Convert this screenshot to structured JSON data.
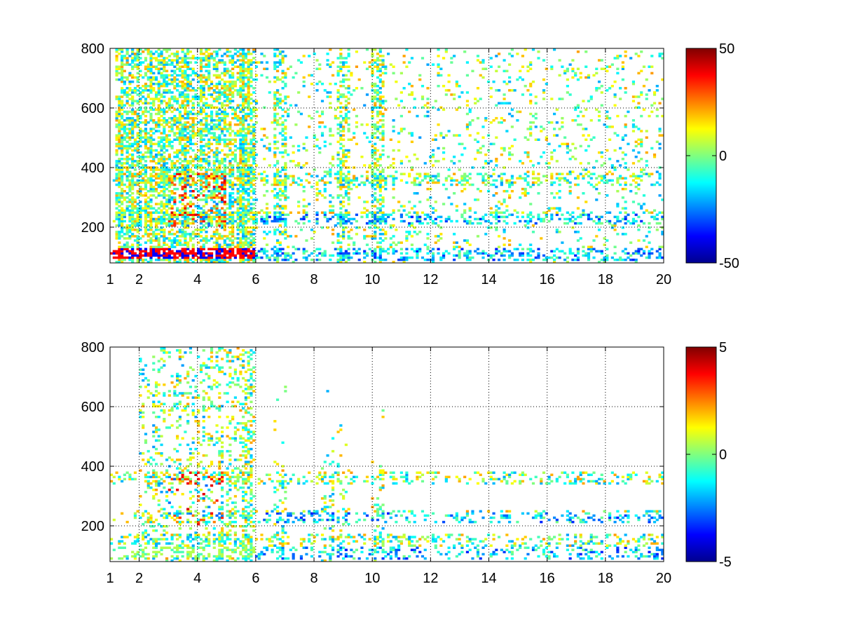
{
  "chart_data": [
    {
      "type": "heatmap",
      "title": "",
      "xlabel": "",
      "ylabel": "",
      "xlim": [
        1,
        20
      ],
      "ylim": [
        80,
        800
      ],
      "xticks": [
        "1",
        "2",
        "4",
        "6",
        "8",
        "10",
        "12",
        "14",
        "16",
        "18",
        "20"
      ],
      "xtick_values": [
        1,
        2,
        4,
        6,
        8,
        10,
        12,
        14,
        16,
        18,
        20
      ],
      "yticks": [
        "200",
        "400",
        "600",
        "800"
      ],
      "ytick_values": [
        200,
        400,
        600,
        800
      ],
      "grid": true,
      "colormap": "jet",
      "colorbar": {
        "min": -50,
        "max": 50,
        "ticks": [
          "50",
          "0",
          "-50"
        ],
        "tick_values": [
          50,
          0,
          -50
        ]
      },
      "patterns": {
        "dense_region_x": [
          1.2,
          6.0
        ],
        "sparse_region_x": [
          6.0,
          20.0
        ],
        "horizontal_bands_y": [
          110,
          230,
          360
        ],
        "vertical_bands_x": [
          5.7,
          6.8,
          9.0,
          10.2
        ],
        "diagonal_feature": [
          [
            2.8,
            140
          ],
          [
            4.2,
            280
          ],
          [
            5.6,
            500
          ],
          [
            5.7,
            780
          ]
        ]
      }
    },
    {
      "type": "heatmap",
      "title": "",
      "xlabel": "",
      "ylabel": "",
      "xlim": [
        1,
        20
      ],
      "ylim": [
        80,
        800
      ],
      "xticks": [
        "1",
        "2",
        "4",
        "6",
        "8",
        "10",
        "12",
        "14",
        "16",
        "18",
        "20"
      ],
      "xtick_values": [
        1,
        2,
        4,
        6,
        8,
        10,
        12,
        14,
        16,
        18,
        20
      ],
      "yticks": [
        "200",
        "400",
        "600",
        "800"
      ],
      "ytick_values": [
        200,
        400,
        600,
        800
      ],
      "grid": true,
      "colormap": "jet",
      "colorbar": {
        "min": -5,
        "max": 5,
        "ticks": [
          "5",
          "0",
          "-5"
        ],
        "tick_values": [
          5,
          0,
          -5
        ]
      },
      "patterns": {
        "dense_region_x": [
          2.0,
          6.0
        ],
        "sparse_region_x": [
          6.0,
          13.0
        ],
        "horizontal_bands_y": [
          110,
          150,
          230,
          360
        ],
        "vertical_bands_x": [
          5.7,
          6.8,
          8.5,
          9.0,
          10.2
        ],
        "diagonal_feature": [
          [
            3.0,
            260
          ],
          [
            4.0,
            320
          ],
          [
            5.5,
            450
          ],
          [
            5.7,
            740
          ]
        ]
      }
    }
  ]
}
